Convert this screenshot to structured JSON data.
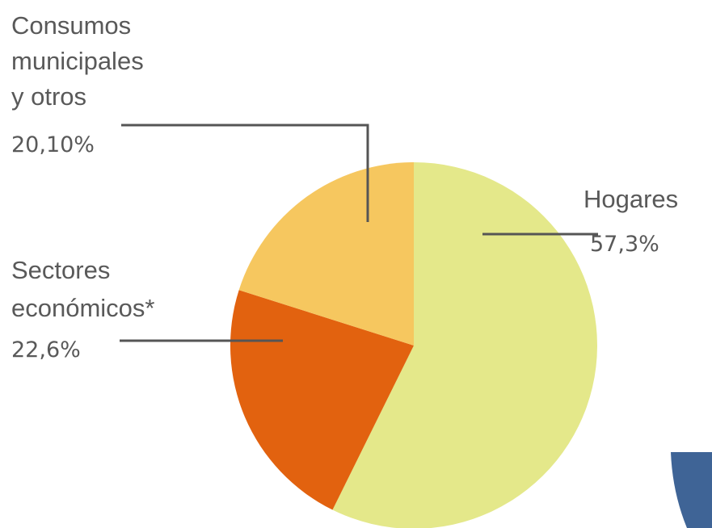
{
  "chart_data": {
    "type": "pie",
    "slices": [
      {
        "label": "Hogares",
        "value_label": "57,3%",
        "value": 57.3,
        "color": "#e4e88a"
      },
      {
        "label": "Sectores económicos*",
        "value_label": "22,6%",
        "value": 22.6,
        "color": "#e2620f"
      },
      {
        "label": "Consumos municipales y otros",
        "value_label": "20,10%",
        "value": 20.1,
        "color": "#f6c75f"
      }
    ],
    "label_lines": {
      "hogares": [
        "Hogares"
      ],
      "sectores": [
        "Sectores",
        "económicos*"
      ],
      "consumos": [
        "Consumos",
        "municipales",
        "y otros"
      ]
    },
    "decor_color": "#3f6496"
  }
}
